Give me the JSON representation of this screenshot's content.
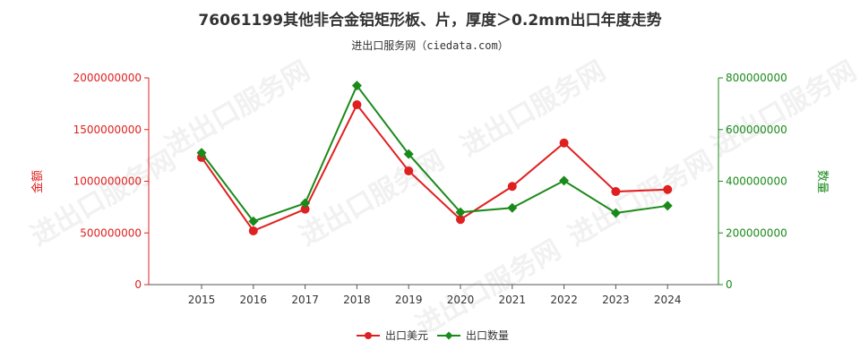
{
  "page": {
    "title": "76061199其他非合金铝矩形板、片，厚度＞0.2mm出口年度走势",
    "subtitle": "进出口服务网（ciedata.com）",
    "watermark": "进出口服务网"
  },
  "colors": {
    "export_usd": "#e02020",
    "export_qty": "#1a8a1a"
  },
  "chart_data": {
    "type": "line",
    "title": "76061199其他非合金铝矩形板、片，厚度＞0.2mm出口年度走势",
    "categories": [
      "2015",
      "2016",
      "2017",
      "2018",
      "2019",
      "2020",
      "2021",
      "2022",
      "2023",
      "2024"
    ],
    "series": [
      {
        "name": "出口美元",
        "axis": "left",
        "marker": "circle",
        "color": "#e02020",
        "values": [
          1230000000,
          520000000,
          730000000,
          1740000000,
          1100000000,
          630000000,
          950000000,
          1370000000,
          900000000,
          920000000
        ]
      },
      {
        "name": "出口数量",
        "axis": "right",
        "marker": "diamond",
        "color": "#1a8a1a",
        "values": [
          510000000,
          245000000,
          315000000,
          770000000,
          505000000,
          280000000,
          297000000,
          402000000,
          277000000,
          305000000
        ]
      }
    ],
    "ylabel_left": "金额",
    "ylabel_right": "数量",
    "ylim_left": [
      0,
      2000000000
    ],
    "ylim_right": [
      0,
      800000000
    ],
    "yticks_left": [
      0,
      500000000,
      1000000000,
      1500000000,
      2000000000
    ],
    "yticks_right": [
      0,
      200000000,
      400000000,
      600000000,
      800000000
    ],
    "ytick_labels_left": [
      "0",
      "500000000",
      "1000000000",
      "1500000000",
      "2000000000"
    ],
    "ytick_labels_right": [
      "0",
      "200000000",
      "400000000",
      "600000000",
      "800000000"
    ],
    "grid": false,
    "legend": "bottom-center"
  }
}
